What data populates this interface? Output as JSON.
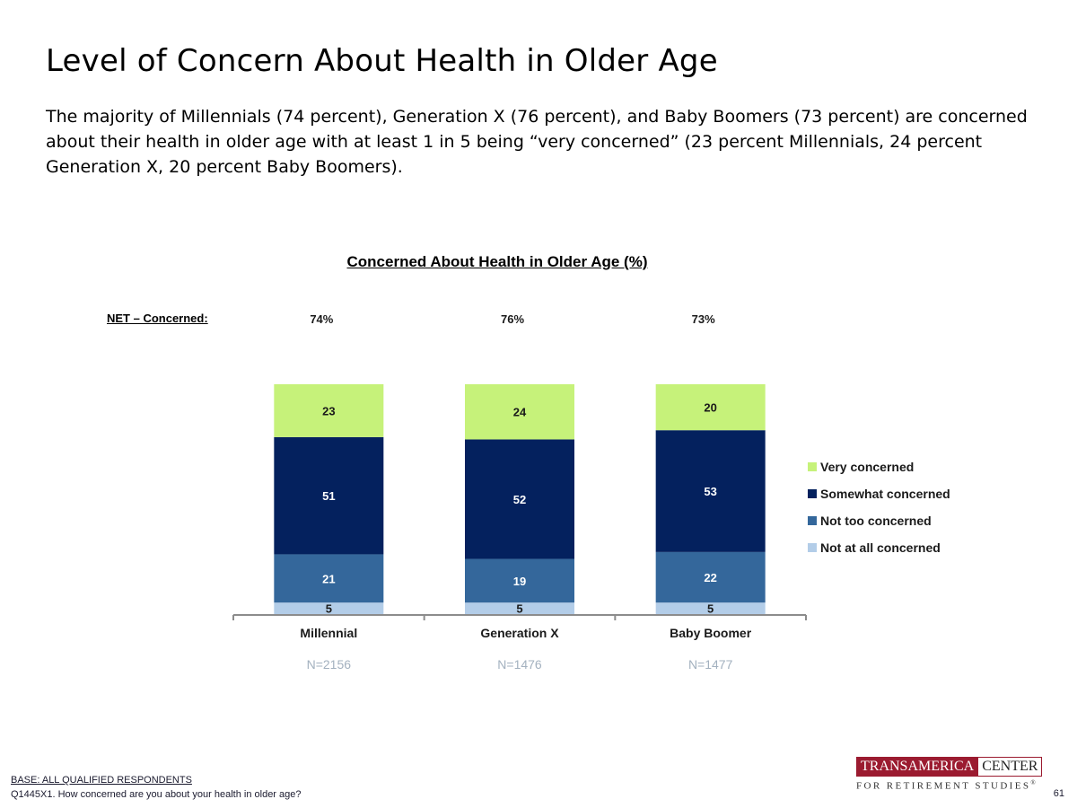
{
  "title": "Level of Concern About Health in Older Age",
  "subtitle": "The majority of Millennials (74 percent), Generation X (76 percent), and Baby Boomers (73 percent) are concerned about their health in older age with at least 1 in 5 being “very concerned” (23 percent Millennials, 24 percent Generation X, 20 percent Baby Boomers).",
  "net_label": "NET – Concerned:",
  "sample_sizes": [
    "N=2156",
    "N=1476",
    "N=1477"
  ],
  "net_values": [
    "74%",
    "76%",
    "73%"
  ],
  "footer": {
    "base": "BASE:  ALL QUALIFIED RESPONDENTS",
    "question": "Q1445X1. How concerned are you about your health in older age?",
    "page_number": "61"
  },
  "logo": {
    "part1": "TRANSAMERICA",
    "part2": "CENTER",
    "line2": "FOR RETIREMENT STUDIES",
    "mark": "®"
  },
  "chart_data": {
    "type": "bar",
    "stacked": true,
    "title": "Concerned About Health in Older Age (%)",
    "categories": [
      "Millennial",
      "Generation X",
      "Baby Boomer"
    ],
    "series": [
      {
        "name": "Not at all concerned",
        "values": [
          5,
          5,
          5
        ],
        "color": "#b3cde8"
      },
      {
        "name": "Not too concerned",
        "values": [
          21,
          19,
          22
        ],
        "color": "#34679b"
      },
      {
        "name": "Somewhat concerned",
        "values": [
          51,
          52,
          53
        ],
        "color": "#04215e"
      },
      {
        "name": "Very concerned",
        "values": [
          23,
          24,
          20
        ],
        "color": "#c6f27a"
      }
    ],
    "ylim": [
      0,
      100
    ],
    "legend_position": "right",
    "legend_order": [
      "Very concerned",
      "Somewhat concerned",
      "Not too concerned",
      "Not at all concerned"
    ],
    "grid": false
  }
}
